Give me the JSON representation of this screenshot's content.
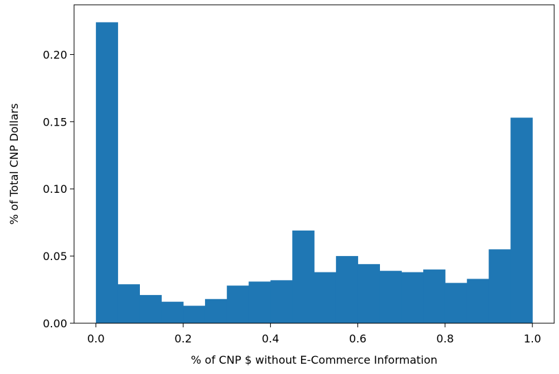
{
  "chart_data": {
    "type": "bar",
    "title": "",
    "xlabel": "% of CNP $ without E-Commerce Information",
    "ylabel": "% of Total CNP Dollars",
    "xlim": [
      -0.05,
      1.05
    ],
    "ylim": [
      0,
      0.237
    ],
    "xticks": [
      0.0,
      0.2,
      0.4,
      0.6,
      0.8,
      1.0
    ],
    "xtick_labels": [
      "0.0",
      "0.2",
      "0.4",
      "0.6",
      "0.8",
      "1.0"
    ],
    "yticks": [
      0.0,
      0.05,
      0.1,
      0.15,
      0.2
    ],
    "ytick_labels": [
      "0.00",
      "0.05",
      "0.10",
      "0.15",
      "0.20"
    ],
    "bin_edges": [
      0.0,
      0.05,
      0.1,
      0.15,
      0.2,
      0.25,
      0.3,
      0.35,
      0.4,
      0.45,
      0.5,
      0.55,
      0.6,
      0.65,
      0.7,
      0.75,
      0.8,
      0.85,
      0.9,
      0.95,
      1.0
    ],
    "values": [
      0.224,
      0.029,
      0.021,
      0.016,
      0.013,
      0.018,
      0.028,
      0.031,
      0.032,
      0.069,
      0.038,
      0.05,
      0.044,
      0.039,
      0.038,
      0.04,
      0.03,
      0.033,
      0.055,
      0.153
    ],
    "bar_color": "#1f77b4",
    "grid": false
  }
}
